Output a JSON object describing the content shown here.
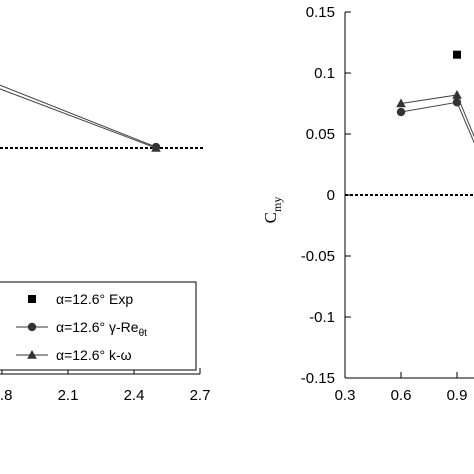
{
  "chart_data": [
    {
      "type": "line",
      "panel": "left",
      "title": "",
      "xlabel": "",
      "ylabel": "",
      "xlim": [
        1.5,
        2.7
      ],
      "x_ticks": [
        "1.8",
        "2.1",
        "2.4",
        "2.7"
      ],
      "y_ticks": [],
      "grid": false,
      "reference_line": "dashed horizontal line",
      "legend": {
        "placement": "bottom-right",
        "entries": [
          {
            "marker": "square",
            "line": false,
            "prefix": "α=12.6° ",
            "label": "Exp",
            "sub": ""
          },
          {
            "marker": "circle",
            "line": true,
            "prefix": "α=12.6° ",
            "label": "γ-Re",
            "sub": "θt"
          },
          {
            "marker": "triangle",
            "line": true,
            "prefix": "α=12.6° ",
            "label": "k-ω",
            "sub": ""
          }
        ]
      },
      "series": [
        {
          "name": "α=12.6° γ-Reθt",
          "marker": "circle",
          "x": [
            1.5,
            2.5
          ],
          "y": [
            0.9,
            0.01
          ]
        },
        {
          "name": "α=12.6° k-ω",
          "marker": "triangle",
          "x": [
            1.5,
            2.5
          ],
          "y": [
            0.85,
            0.0
          ]
        }
      ]
    },
    {
      "type": "line",
      "panel": "right",
      "title": "",
      "xlabel": "",
      "ylabel": "C",
      "ylabel_sub": "my",
      "xlim": [
        0.3,
        1.0
      ],
      "ylim": [
        -0.15,
        0.15
      ],
      "x_ticks": [
        "0.3",
        "0.6",
        "0.9"
      ],
      "y_ticks": [
        "0.15",
        "0.1",
        "0.05",
        "0",
        "-0.05",
        "-0.1",
        "-0.15"
      ],
      "grid": false,
      "reference_line": "dashed horizontal line at y=0",
      "series": [
        {
          "name": "α=12.6° Exp",
          "marker": "square",
          "line": false,
          "x": [
            0.9
          ],
          "y": [
            0.115
          ]
        },
        {
          "name": "α=12.6° γ-Reθt",
          "marker": "circle",
          "line": true,
          "x": [
            0.6,
            0.9,
            1.0
          ],
          "y": [
            0.068,
            0.076,
            0.04
          ]
        },
        {
          "name": "α=12.6° k-ω",
          "marker": "triangle",
          "line": true,
          "x": [
            0.6,
            0.9,
            1.0
          ],
          "y": [
            0.075,
            0.082,
            0.045
          ]
        }
      ]
    }
  ]
}
